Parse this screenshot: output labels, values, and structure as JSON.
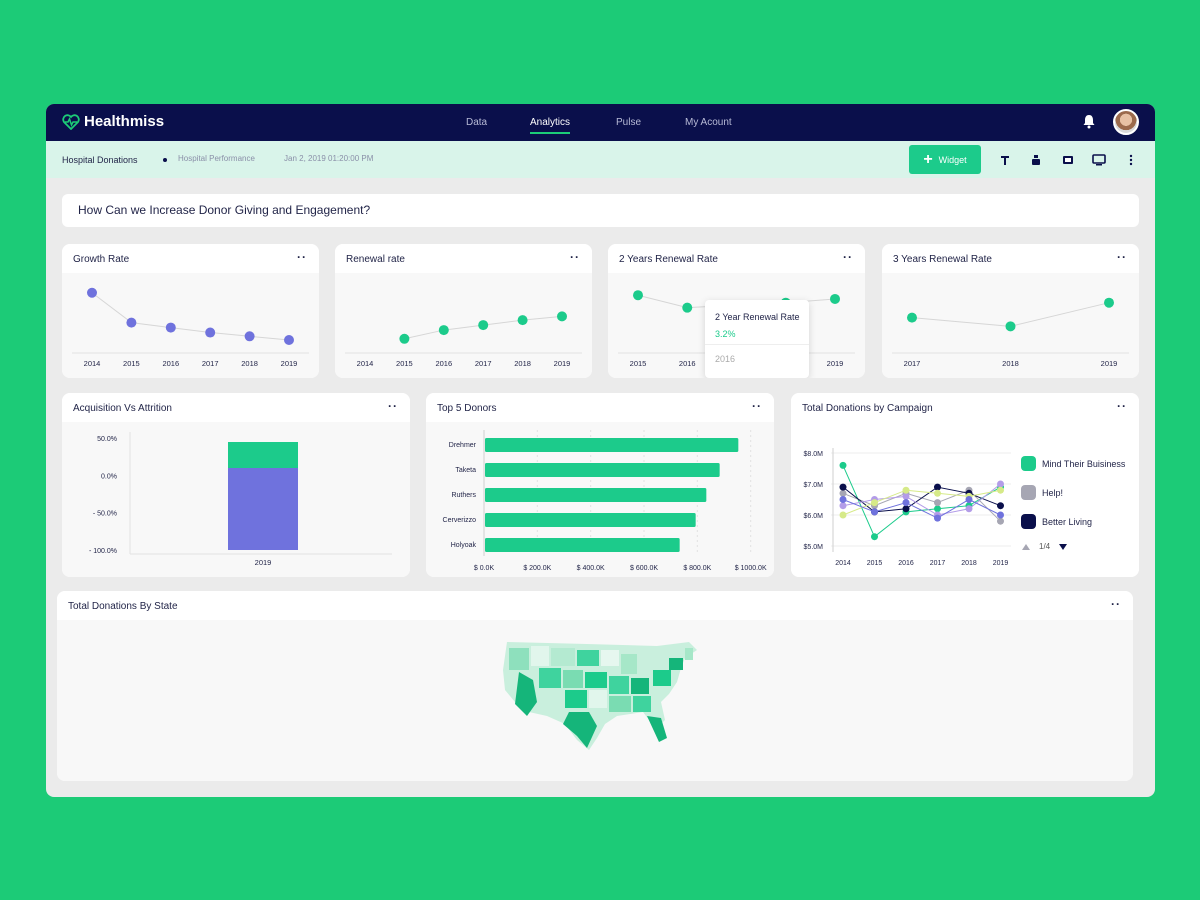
{
  "app": {
    "name": "Healthmiss"
  },
  "nav": [
    "Data",
    "Analytics",
    "Pulse",
    "My Acount"
  ],
  "subbar": {
    "title": "Hospital Donations",
    "perf": "Hospital Performance",
    "date": "Jan 2, 2019 01:20:00 PM",
    "widget_label": "Widget"
  },
  "question": "How Can we Increase Donor Giving and Engagement?",
  "colors": {
    "green": "#1ccb8b",
    "purple": "#6f72dd",
    "navy": "#0a0f4b",
    "gray": "#a6a6b3",
    "bg": "#1ccb77"
  },
  "cards": {
    "growth": "Growth Rate",
    "renewal": "Renewal rate",
    "renewal2": "2 Years Renewal Rate",
    "renewal3": "3 Years Renewal Rate",
    "acq": "Acquisition Vs Attrition",
    "donors": "Top 5 Donors",
    "campaign": "Total Donations by Campaign",
    "state": "Total Donations By State"
  },
  "tooltip": {
    "title": "2 Year Renewal Rate",
    "value": "3.2%",
    "year": "2016"
  },
  "legend": [
    "Mind Their Buisiness",
    "Help!",
    "Better Living"
  ],
  "pager": "1/4",
  "chart_data": [
    {
      "type": "line",
      "title": "Growth Rate",
      "x": [
        "2014",
        "2015",
        "2016",
        "2017",
        "2018",
        "2019"
      ],
      "values": [
        82,
        58,
        54,
        50,
        47,
        44
      ],
      "color": "#6f72dd"
    },
    {
      "type": "line",
      "title": "Renewal rate",
      "x": [
        "2014",
        "2015",
        "2016",
        "2017",
        "2018",
        "2019"
      ],
      "values": [
        null,
        45,
        52,
        56,
        60,
        63
      ],
      "color": "#1ccb8b"
    },
    {
      "type": "line",
      "title": "2 Years Renewal Rate",
      "x": [
        "2015",
        "2016",
        "2017",
        "2018",
        "2019"
      ],
      "values": [
        80,
        70,
        72,
        74,
        77
      ],
      "color": "#1ccb8b"
    },
    {
      "type": "line",
      "title": "3 Years Renewal Rate",
      "x": [
        "2017",
        "2018",
        "2019"
      ],
      "values": [
        62,
        55,
        74
      ],
      "color": "#1ccb8b"
    },
    {
      "type": "bar",
      "title": "Acquisition Vs Attrition",
      "categories": [
        "2019"
      ],
      "y_ticks": [
        "50.0%",
        "0.0%",
        "- 50.0%",
        "- 100.0%"
      ],
      "ylim": [
        -100,
        50
      ],
      "series": [
        {
          "values": [
            35
          ]
        },
        {
          "values": [
            -100
          ]
        }
      ]
    },
    {
      "type": "bar",
      "title": "Top 5 Donors",
      "orientation": "horizontal",
      "categories": [
        "Drehmer",
        "Taketa",
        "Ruthers",
        "Cerverizzo",
        "Holyoak"
      ],
      "values": [
        950,
        880,
        830,
        790,
        730
      ],
      "x_ticks": [
        "$ 0.0K",
        "$ 200.0K",
        "$ 400.0K",
        "$ 600.0K",
        "$ 800.0K",
        "$ 1000.0K"
      ],
      "xlim": [
        0,
        1050
      ]
    },
    {
      "type": "line",
      "title": "Total Donations by Campaign",
      "x": [
        "2014",
        "2015",
        "2016",
        "2017",
        "2018",
        "2019"
      ],
      "y_ticks": [
        "$8.0M",
        "$7.0M",
        "$6.0M",
        "$5.0M"
      ],
      "ylim": [
        5.0,
        8.0
      ],
      "series": [
        {
          "name": "Mind Their Buisiness",
          "color": "#1ccb8b",
          "values": [
            7.6,
            5.3,
            6.1,
            6.2,
            6.3,
            6.9
          ]
        },
        {
          "name": "Help!",
          "color": "#a6a6b3",
          "values": [
            6.7,
            6.3,
            6.7,
            6.4,
            6.8,
            5.8
          ]
        },
        {
          "name": "Better Living",
          "color": "#0a0f4b",
          "values": [
            6.9,
            6.1,
            6.2,
            6.9,
            6.7,
            6.3
          ]
        },
        {
          "color": "#b39ce8",
          "values": [
            6.3,
            6.5,
            6.6,
            6.0,
            6.2,
            7.0
          ]
        },
        {
          "color": "#d6ea88",
          "values": [
            6.0,
            6.4,
            6.8,
            6.7,
            6.6,
            6.8
          ]
        },
        {
          "color": "#6f72dd",
          "values": [
            6.5,
            6.1,
            6.4,
            5.9,
            6.5,
            6.0
          ]
        }
      ]
    }
  ]
}
